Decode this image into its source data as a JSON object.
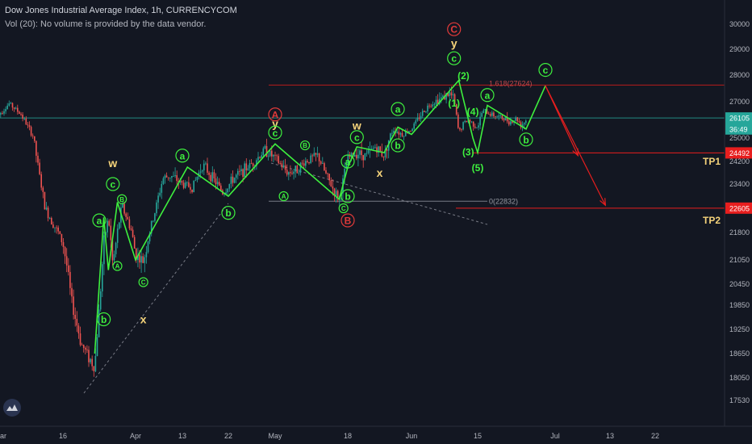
{
  "header": {
    "title": "Dow Jones Industrial Average Index, 1h, CURRENCYCOM",
    "volume_note": "Vol (20): No volume is provided by the data vendor."
  },
  "colors": {
    "background": "#131722",
    "grid": "#1e222d",
    "axis_text": "#b2b5be",
    "bull_candle": "#26a69a",
    "bear_candle": "#ef5350",
    "wave_line": "#3ef03e",
    "wave_label": "#3ef03e",
    "corrective_label": "#f5d37a",
    "major_label": "#e03a3a",
    "target_line": "#e81e1e",
    "current_price_line": "#26a69a",
    "fib_line": "#b71c1c",
    "dashed_line": "#787b86"
  },
  "chart_data": {
    "type": "candlestick",
    "title": "Dow Jones Industrial Average Index, 1h, CURRENCYCOM",
    "y_axis": {
      "ticks": [
        30000,
        29000,
        28000,
        27000,
        25000,
        24200,
        23400,
        22600,
        21800,
        21050,
        20450,
        19850,
        19250,
        18650,
        18050,
        17530
      ],
      "tick_labels": [
        "30000",
        "29000",
        "28000",
        "27000",
        "25000",
        "24200",
        "23400",
        "22600",
        "21800",
        "21050",
        "20450",
        "19850",
        "19250",
        "18650",
        "18050",
        "17530"
      ],
      "range": [
        17530,
        30400
      ]
    },
    "x_axis": {
      "tick_labels": [
        "ar",
        "16",
        "Apr",
        "13",
        "22",
        "May",
        "18",
        "Jun",
        "15",
        "Jul",
        "13",
        "22"
      ],
      "tick_dates": [
        "2020-03-06",
        "2020-03-16",
        "2020-04-01",
        "2020-04-13",
        "2020-04-22",
        "2020-05-01",
        "2020-05-18",
        "2020-06-01",
        "2020-06-15",
        "2020-07-01",
        "2020-07-13",
        "2020-07-22"
      ]
    },
    "price_path": [
      [
        "2020-03-05",
        26200
      ],
      [
        "2020-03-07",
        26900
      ],
      [
        "2020-03-09",
        26300
      ],
      [
        "2020-03-11",
        25100
      ],
      [
        "2020-03-12",
        23800
      ],
      [
        "2020-03-13",
        22600
      ],
      [
        "2020-03-16",
        21500
      ],
      [
        "2020-03-17",
        20800
      ],
      [
        "2020-03-18",
        19900
      ],
      [
        "2020-03-19",
        19400
      ],
      [
        "2020-03-20",
        18900
      ],
      [
        "2020-03-23",
        18300
      ],
      [
        "2020-03-24",
        19800
      ],
      [
        "2020-03-25",
        21500
      ],
      [
        "2020-03-26",
        22300
      ],
      [
        "2020-03-27",
        20900
      ],
      [
        "2020-03-29",
        22700
      ],
      [
        "2020-03-31",
        21900
      ],
      [
        "2020-04-01",
        21200
      ],
      [
        "2020-04-03",
        21000
      ],
      [
        "2020-04-06",
        22500
      ],
      [
        "2020-04-08",
        23600
      ],
      [
        "2020-04-10",
        23700
      ],
      [
        "2020-04-13",
        23400
      ],
      [
        "2020-04-15",
        23300
      ],
      [
        "2020-04-17",
        24100
      ],
      [
        "2020-04-21",
        23100
      ],
      [
        "2020-04-23",
        23600
      ],
      [
        "2020-04-27",
        24200
      ],
      [
        "2020-04-29",
        24600
      ],
      [
        "2020-05-01",
        24300
      ],
      [
        "2020-05-04",
        23800
      ],
      [
        "2020-05-06",
        23900
      ],
      [
        "2020-05-08",
        24200
      ],
      [
        "2020-05-11",
        24400
      ],
      [
        "2020-05-13",
        23700
      ],
      [
        "2020-05-15",
        23100
      ],
      [
        "2020-05-16",
        22900
      ],
      [
        "2020-05-18",
        24300
      ],
      [
        "2020-05-20",
        24500
      ],
      [
        "2020-05-22",
        24400
      ],
      [
        "2020-05-24",
        24700
      ],
      [
        "2020-05-26",
        24400
      ],
      [
        "2020-05-28",
        25500
      ],
      [
        "2020-05-30",
        25200
      ],
      [
        "2020-06-01",
        25500
      ],
      [
        "2020-06-03",
        26300
      ],
      [
        "2020-06-05",
        26900
      ],
      [
        "2020-06-07",
        27100
      ],
      [
        "2020-06-09",
        27300
      ],
      [
        "2020-06-10",
        27100
      ],
      [
        "2020-06-11",
        25300
      ],
      [
        "2020-06-12",
        25800
      ],
      [
        "2020-06-13",
        26000
      ],
      [
        "2020-06-15",
        25600
      ],
      [
        "2020-06-16",
        26500
      ],
      [
        "2020-06-17",
        26400
      ],
      [
        "2020-06-19",
        26200
      ],
      [
        "2020-06-22",
        25900
      ],
      [
        "2020-06-23",
        26100
      ],
      [
        "2020-06-24",
        25700
      ],
      [
        "2020-06-25",
        26000
      ]
    ],
    "wave_path": [
      [
        "2020-03-23",
        18650
      ],
      [
        "2020-03-25",
        22300
      ],
      [
        "2020-03-26",
        20800
      ],
      [
        "2020-03-28",
        22800
      ],
      [
        "2020-04-01",
        21050
      ],
      [
        "2020-04-14",
        24000
      ],
      [
        "2020-04-22",
        23000
      ],
      [
        "2020-05-01",
        24800
      ],
      [
        "2020-05-16",
        22900
      ],
      [
        "2020-05-18",
        24000
      ],
      [
        "2020-05-20",
        24700
      ],
      [
        "2020-05-26",
        24500
      ],
      [
        "2020-05-29",
        25600
      ],
      [
        "2020-06-01",
        25200
      ],
      [
        "2020-06-11",
        27800
      ],
      [
        "2020-06-14",
        25000
      ],
      [
        "2020-06-15",
        24500
      ],
      [
        "2020-06-17",
        26800
      ],
      [
        "2020-06-25",
        25500
      ],
      [
        "2020-06-29",
        27600
      ]
    ],
    "projection_paths": [
      [
        [
          "2020-06-29",
          27600
        ],
        [
          "2020-07-06",
          24400
        ]
      ],
      [
        [
          "2020-06-29",
          27600
        ],
        [
          "2020-07-12",
          22700
        ]
      ]
    ],
    "horizontal_lines": [
      {
        "name": "current-price",
        "value": 26105,
        "label": "26105"
      },
      {
        "name": "tp1",
        "value": 24492,
        "label": "24492",
        "tag": "TP1"
      },
      {
        "name": "tp2",
        "value": 22605,
        "label": "22605",
        "tag": "TP2"
      },
      {
        "name": "fib-1618",
        "value": 27624,
        "label": "1.618(27624)"
      },
      {
        "name": "fib-0",
        "value": 22832,
        "label": "0(22832)"
      }
    ],
    "price_badges": [
      {
        "value": 26105,
        "text": "26105"
      },
      {
        "value": 25500,
        "text": "36:49"
      },
      {
        "value": 24492,
        "text": "24492"
      },
      {
        "value": 22605,
        "text": "22605"
      }
    ],
    "wave_labels": [
      {
        "text": "w",
        "date": "2020-03-27",
        "price": 24150,
        "style": "plain-yellow"
      },
      {
        "text": "c",
        "date": "2020-03-27",
        "price": 23400,
        "style": "green-circle"
      },
      {
        "text": "a",
        "date": "2020-03-24",
        "price": 22200,
        "style": "green-circle"
      },
      {
        "text": "b",
        "date": "2020-03-25",
        "price": 19500,
        "style": "green-circle"
      },
      {
        "text": "B",
        "date": "2020-03-29",
        "price": 22900,
        "style": "small-green-circle"
      },
      {
        "text": "A",
        "date": "2020-03-28",
        "price": 20900,
        "style": "small-green-circle"
      },
      {
        "text": "C",
        "date": "2020-04-03",
        "price": 20500,
        "style": "small-green-circle"
      },
      {
        "text": "x",
        "date": "2020-04-03",
        "price": 19500,
        "style": "plain-yellow"
      },
      {
        "text": "a",
        "date": "2020-04-13",
        "price": 24400,
        "style": "green-circle"
      },
      {
        "text": "b",
        "date": "2020-04-22",
        "price": 22450,
        "style": "green-circle"
      },
      {
        "text": "A",
        "date": "2020-05-01",
        "price": 26300,
        "style": "red-circle"
      },
      {
        "text": "y",
        "date": "2020-05-01",
        "price": 25800,
        "style": "plain-yellow"
      },
      {
        "text": "c",
        "date": "2020-05-01",
        "price": 25300,
        "style": "green-circle"
      },
      {
        "text": "B",
        "date": "2020-05-08",
        "price": 24750,
        "style": "small-green-circle"
      },
      {
        "text": "A",
        "date": "2020-05-03",
        "price": 23000,
        "style": "small-green-circle"
      },
      {
        "text": "C",
        "date": "2020-05-17",
        "price": 22600,
        "style": "small-green-circle"
      },
      {
        "text": "b",
        "date": "2020-05-18",
        "price": 23000,
        "style": "green-circle"
      },
      {
        "text": "B",
        "date": "2020-05-18",
        "price": 22200,
        "style": "red-circle"
      },
      {
        "text": "w",
        "date": "2020-05-20",
        "price": 25700,
        "style": "plain-yellow"
      },
      {
        "text": "c",
        "date": "2020-05-20",
        "price": 25050,
        "style": "green-circle"
      },
      {
        "text": "a",
        "date": "2020-05-18",
        "price": 24200,
        "style": "green-circle"
      },
      {
        "text": "x",
        "date": "2020-05-25",
        "price": 23800,
        "style": "plain-yellow"
      },
      {
        "text": "a",
        "date": "2020-05-29",
        "price": 26600,
        "style": "green-circle"
      },
      {
        "text": "b",
        "date": "2020-05-29",
        "price": 24750,
        "style": "green-circle"
      },
      {
        "text": "C",
        "date": "2020-06-10",
        "price": 29800,
        "style": "red-circle"
      },
      {
        "text": "y",
        "date": "2020-06-10",
        "price": 29250,
        "style": "plain-yellow"
      },
      {
        "text": "c",
        "date": "2020-06-10",
        "price": 28650,
        "style": "green-circle"
      },
      {
        "text": "(2)",
        "date": "2020-06-12",
        "price": 28000,
        "style": "plain-green"
      },
      {
        "text": "(1)",
        "date": "2020-06-10",
        "price": 26950,
        "style": "plain-green"
      },
      {
        "text": "(4)",
        "date": "2020-06-14",
        "price": 26500,
        "style": "plain-green"
      },
      {
        "text": "(3)",
        "date": "2020-06-13",
        "price": 24550,
        "style": "plain-green"
      },
      {
        "text": "(5)",
        "date": "2020-06-15",
        "price": 24000,
        "style": "plain-green"
      },
      {
        "text": "a",
        "date": "2020-06-17",
        "price": 27250,
        "style": "green-circle"
      },
      {
        "text": "b",
        "date": "2020-06-25",
        "price": 24950,
        "style": "green-circle"
      },
      {
        "text": "c",
        "date": "2020-06-29",
        "price": 28200,
        "style": "green-circle"
      }
    ],
    "target_tags": [
      {
        "text": "TP1",
        "value": 24200
      },
      {
        "text": "TP2",
        "value": 22200
      }
    ],
    "grid": false,
    "legend": "none"
  }
}
